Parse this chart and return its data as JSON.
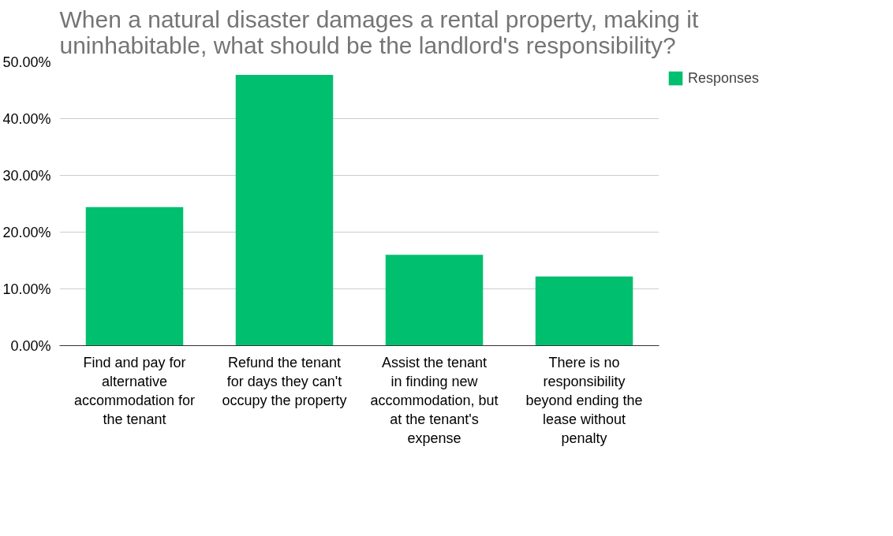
{
  "chart_data": {
    "type": "bar",
    "title": "When a natural disaster damages a rental property, making it uninhabitable, what should be the landlord's responsibility?",
    "categories": [
      "Find and pay for alternative accommodation for the tenant",
      "Refund the tenant for days they can't occupy the property",
      "Assist the tenant in finding new accommodation, but at the tenant's expense",
      "There is no responsibility beyond ending the lease without penalty"
    ],
    "series": [
      {
        "name": "Responses",
        "color": "#00bf6f",
        "values": [
          24.4,
          47.7,
          16.0,
          12.2
        ]
      }
    ],
    "ylim": [
      0,
      50
    ],
    "yticks": [
      {
        "value": 0,
        "label": "0.00%"
      },
      {
        "value": 10,
        "label": "10.00%"
      },
      {
        "value": 20,
        "label": "20.00%"
      },
      {
        "value": 30,
        "label": "30.00%"
      },
      {
        "value": 40,
        "label": "40.00%"
      },
      {
        "value": 50,
        "label": "50.00%"
      }
    ],
    "grid": "y",
    "legend": "right"
  }
}
